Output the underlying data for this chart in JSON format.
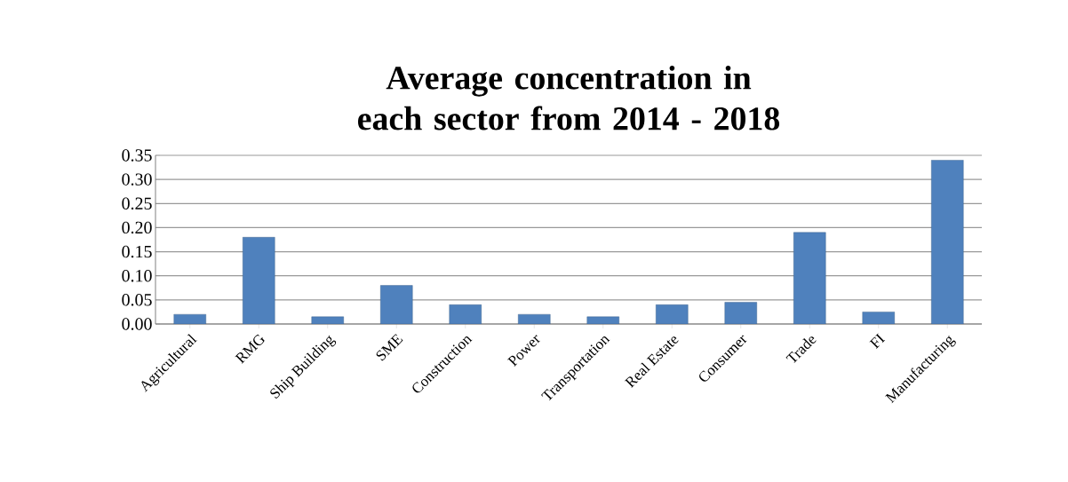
{
  "chart_data": {
    "type": "bar",
    "title": "Average concentration in each sector from 2014 - 2018",
    "categories": [
      "Agricultural",
      "RMG",
      "Ship Building",
      "SME",
      "Construction",
      "Power",
      "Transportation",
      "Real Estate",
      "Consumer",
      "Trade",
      "FI",
      "Manufacturing"
    ],
    "values": [
      0.02,
      0.18,
      0.015,
      0.08,
      0.04,
      0.02,
      0.015,
      0.04,
      0.045,
      0.19,
      0.025,
      0.34
    ],
    "color": "#4f81bd",
    "ylim": [
      0,
      0.35
    ],
    "yticks": [
      {
        "value": 0,
        "label": "0.00"
      },
      {
        "value": 0.05,
        "label": "0.05"
      },
      {
        "value": 0.1,
        "label": "0.10"
      },
      {
        "value": 0.15,
        "label": "0.15"
      },
      {
        "value": 0.2,
        "label": "0.20"
      },
      {
        "value": 0.25,
        "label": "0.25"
      },
      {
        "value": 0.3,
        "label": "0.30"
      },
      {
        "value": 0.35,
        "label": "0.35"
      }
    ],
    "grid": "y"
  }
}
